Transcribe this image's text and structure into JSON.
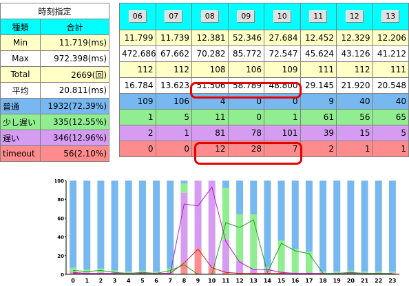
{
  "left_table": {
    "title": "時刻指定",
    "col_type": "種類",
    "col_total": "合計",
    "rows": [
      {
        "label": "Min",
        "value": "11.719(ms)"
      },
      {
        "label": "Max",
        "value": "972.398(ms)"
      },
      {
        "label": "Total",
        "value": "2669(回)"
      },
      {
        "label": "平均",
        "value": "20.811(ms)"
      },
      {
        "label": "普通",
        "value": "1932(72.39%)"
      },
      {
        "label": "少し遅い",
        "value": "335(12.55%)"
      },
      {
        "label": "遅い",
        "value": "346(12.96%)"
      },
      {
        "label": "timeout",
        "value": "56(2.10%)"
      }
    ]
  },
  "right_table": {
    "hours": [
      "06",
      "07",
      "08",
      "09",
      "10",
      "11",
      "12",
      "13"
    ],
    "rows": [
      [
        "11.799",
        "11.739",
        "12.381",
        "52.346",
        "27.684",
        "12.452",
        "12.329",
        "12.206"
      ],
      [
        "472.686",
        "67.662",
        "70.282",
        "85.772",
        "72.547",
        "45.624",
        "43.126",
        "41.212"
      ],
      [
        "112",
        "112",
        "108",
        "106",
        "109",
        "111",
        "112",
        "111"
      ],
      [
        "16.784",
        "13.623",
        "51.506",
        "58.789",
        "48.800",
        "29.145",
        "21.920",
        "20.548"
      ],
      [
        "109",
        "106",
        "4",
        "0",
        "0",
        "9",
        "40",
        "40"
      ],
      [
        "1",
        "5",
        "11",
        "0",
        "1",
        "61",
        "56",
        "65"
      ],
      [
        "2",
        "1",
        "81",
        "78",
        "101",
        "39",
        "15",
        "5"
      ],
      [
        "0",
        "0",
        "12",
        "28",
        "7",
        "2",
        "1",
        "1"
      ]
    ]
  },
  "colors": {
    "normal": "#78b8f0",
    "slightly_slow": "#90ee90",
    "slow": "#d69cf2",
    "timeout": "#ff8c8c",
    "highlight": "#e80000"
  },
  "chart_data": {
    "type": "bar",
    "stacked": true,
    "categories": [
      "0",
      "1",
      "2",
      "3",
      "4",
      "5",
      "6",
      "7",
      "8",
      "9",
      "10",
      "11",
      "12",
      "13",
      "14",
      "15",
      "16",
      "17",
      "18",
      "19",
      "20",
      "21",
      "22",
      "23"
    ],
    "yticks": [
      "100",
      "80",
      "60",
      "40",
      "20",
      "0"
    ],
    "ylim": [
      0,
      100
    ],
    "series": [
      {
        "key": "timeout",
        "values": [
          1,
          1,
          1,
          1,
          1,
          1,
          1,
          1,
          12,
          27,
          7,
          2,
          1,
          1,
          1,
          1,
          1,
          1,
          1,
          1,
          1,
          1,
          1,
          1
        ]
      },
      {
        "key": "slow",
        "values": [
          2,
          1,
          1,
          1,
          1,
          1,
          1,
          1,
          75,
          73,
          93,
          35,
          13,
          5,
          5,
          2,
          1,
          1,
          1,
          1,
          1,
          1,
          1,
          1
        ]
      },
      {
        "key": "slightly_slow",
        "values": [
          4,
          3,
          4,
          2,
          1,
          2,
          1,
          4,
          10,
          0,
          0,
          55,
          50,
          58,
          2,
          33,
          25,
          22,
          1,
          1,
          2,
          1,
          1,
          1
        ]
      },
      {
        "key": "normal",
        "values": [
          93,
          95,
          94,
          96,
          97,
          96,
          97,
          94,
          3,
          0,
          0,
          8,
          36,
          36,
          92,
          64,
          73,
          76,
          97,
          97,
          96,
          97,
          97,
          97
        ]
      }
    ]
  }
}
